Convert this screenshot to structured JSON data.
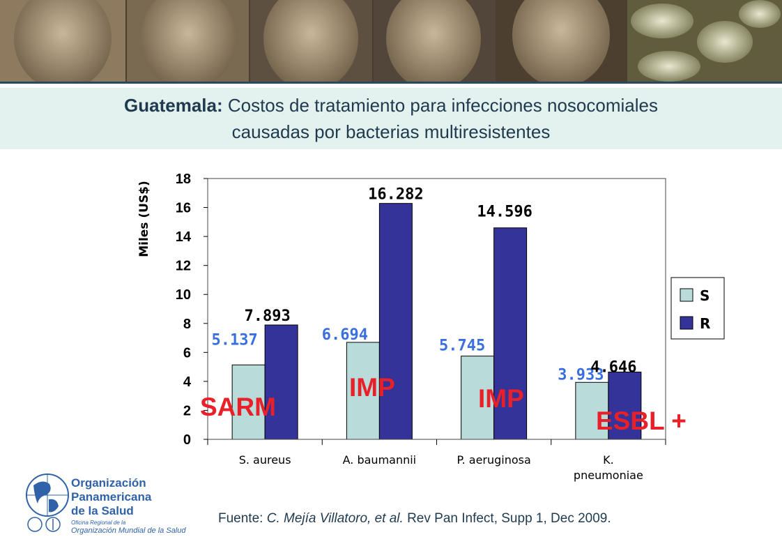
{
  "title": {
    "bold": "Guatemala:",
    "rest": " Costos de tratamiento para infecciones nosocomiales",
    "line2": "causadas por bacterias multiresistentes"
  },
  "chart_data": {
    "type": "bar",
    "ylabel": "Miles (US$)",
    "xlabel": "",
    "ylim": [
      0,
      18
    ],
    "yticks": [
      0,
      2,
      4,
      6,
      8,
      10,
      12,
      14,
      16,
      18
    ],
    "categories": [
      "S. aureus",
      "A. baumannii",
      "P. aeruginosa",
      "K. pneumoniae"
    ],
    "series": [
      {
        "name": "S",
        "color": "#b9dcdb",
        "values": [
          5.137,
          6.694,
          5.745,
          3.933
        ],
        "labels": [
          "5.137",
          "6.694",
          "5.745",
          "3.933"
        ],
        "label_color": "#3a6fe0"
      },
      {
        "name": "R",
        "color": "#333399",
        "values": [
          7.893,
          16.282,
          14.596,
          4.646
        ],
        "labels": [
          "7.893",
          "16.282",
          "14.596",
          "4.646"
        ],
        "label_color": "#000000"
      }
    ],
    "legend_position": "right",
    "grid": false,
    "annotations": [
      "SARM",
      "IMP",
      "IMP",
      "ESBL +"
    ],
    "annotation_color": "#e8202a"
  },
  "logo": {
    "line1": "Organización",
    "line2": "Panamericana",
    "line3": "de la Salud",
    "sub1": "Oficina Regional de la",
    "sub2": "Organización Mundial de la Salud"
  },
  "source": {
    "prefix": "Fuente: ",
    "authors": "C. Mejía Villatoro, et al.",
    "rest": " Rev Pan Infect, Supp 1, Dec 2009."
  }
}
